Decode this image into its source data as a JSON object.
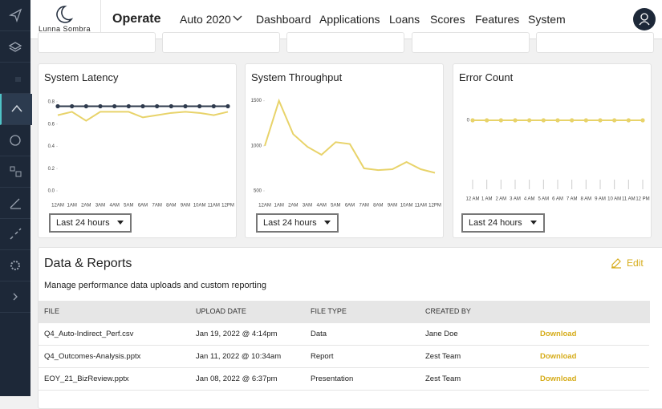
{
  "header": {
    "brand": "Lunna Sombra",
    "section": "Operate",
    "selector": "Auto 2020",
    "nav": [
      "Dashboard",
      "Applications",
      "Loans",
      "Scores",
      "Features",
      "System"
    ]
  },
  "chart_data": [
    {
      "type": "line",
      "title": "System Latency",
      "dropdown": "Last 24 hours",
      "categories": [
        "12AM",
        "1AM",
        "2AM",
        "3AM",
        "4AM",
        "5AM",
        "6AM",
        "7AM",
        "8AM",
        "9AM",
        "10AM",
        "11AM",
        "12PM"
      ],
      "series": [
        {
          "color": "#2f3b4e",
          "markers": true,
          "values": [
            0.76,
            0.76,
            0.76,
            0.76,
            0.76,
            0.76,
            0.76,
            0.76,
            0.76,
            0.76,
            0.76,
            0.76,
            0.76
          ]
        },
        {
          "color": "#e8d36a",
          "markers": false,
          "values": [
            0.68,
            0.71,
            0.63,
            0.71,
            0.71,
            0.71,
            0.66,
            0.68,
            0.7,
            0.71,
            0.7,
            0.68,
            0.71
          ]
        }
      ],
      "ylim": [
        0,
        0.85
      ],
      "yticks": [
        {
          "value": 0,
          "label": "0.0"
        },
        {
          "value": 0.2,
          "label": "0.2"
        },
        {
          "value": 0.4,
          "label": "0.4"
        },
        {
          "value": 0.6,
          "label": "0.6"
        },
        {
          "value": 0.8,
          "label": "0.8"
        }
      ],
      "x_tick_marks": false
    },
    {
      "type": "line",
      "title": "System Throughput",
      "dropdown": "Last 24 hours",
      "categories": [
        "12AM",
        "1AM",
        "2AM",
        "3AM",
        "4AM",
        "5AM",
        "6AM",
        "7AM",
        "8AM",
        "9AM",
        "10AM",
        "11AM",
        "12PM"
      ],
      "series": [
        {
          "color": "#e8d36a",
          "markers": false,
          "values": [
            1000,
            1500,
            1130,
            990,
            900,
            1040,
            1020,
            750,
            730,
            740,
            820,
            740,
            700
          ]
        }
      ],
      "ylim": [
        500,
        1550
      ],
      "yticks": [
        500,
        1000,
        1500
      ],
      "x_tick_marks": false
    },
    {
      "type": "line",
      "title": "Error Count",
      "dropdown": "Last 24 hours",
      "categories": [
        "12 AM",
        "1 AM",
        "2 AM",
        "3 AM",
        "4 AM",
        "5 AM",
        "6 AM",
        "7 AM",
        "8 AM",
        "9 AM",
        "10 AM",
        "11 AM",
        "12 PM"
      ],
      "series": [
        {
          "color": "#e8d36a",
          "markers": true,
          "values": [
            0,
            0,
            0,
            0,
            0,
            0,
            0,
            0,
            0,
            0,
            0,
            0,
            0
          ]
        }
      ],
      "ylim": [
        -1,
        0.5
      ],
      "yticks": [
        0
      ],
      "x_tick_marks": true
    }
  ],
  "reports": {
    "title": "Data & Reports",
    "edit": "Edit",
    "description": "Manage performance data uploads and custom reporting",
    "columns": [
      "FILE",
      "UPLOAD DATE",
      "FILE TYPE",
      "CREATED BY"
    ],
    "rows": [
      [
        "Q4_Auto-Indirect_Perf.csv",
        "Jan 19, 2022 @ 4:14pm",
        "Data",
        "Jane Doe",
        "Download"
      ],
      [
        "Q4_Outcomes-Analysis.pptx",
        "Jan 11, 2022 @ 10:34am",
        "Report",
        "Zest Team",
        "Download"
      ],
      [
        "EOY_21_BizReview.pptx",
        "Jan 08, 2022 @ 6:37pm",
        "Presentation",
        "Zest Team",
        "Download"
      ]
    ]
  }
}
